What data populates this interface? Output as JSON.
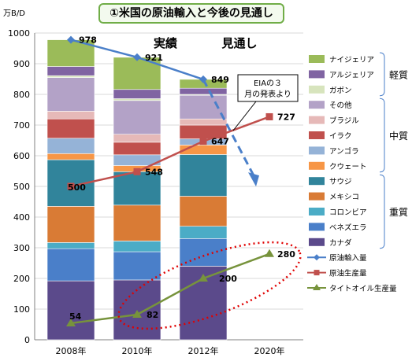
{
  "title": "①米国の原油輸入と今後の見通し",
  "chart_data": {
    "type": "bar",
    "subtype": "stacked bar with line overlays",
    "title": "①米国の原油輸入と今後の見通し",
    "ylabel": "万B/D",
    "ylim": [
      0,
      1000
    ],
    "yticks": [
      0,
      100,
      200,
      300,
      400,
      500,
      600,
      700,
      800,
      900,
      1000
    ],
    "grid": true,
    "legend_position": "right",
    "categories": [
      "2008年",
      "2010年",
      "2012年",
      "2020年"
    ],
    "section_labels": {
      "actual": "実績",
      "forecast": "見通し"
    },
    "annotation": "EIAの３月の発表より",
    "stack_series": [
      {
        "name": "カナダ",
        "color": "#5b4a8b",
        "values": [
          192,
          195,
          240,
          null
        ]
      },
      {
        "name": "ベネズエラ",
        "color": "#4a7fc9",
        "values": [
          105,
          92,
          90,
          null
        ]
      },
      {
        "name": "コロンビア",
        "color": "#4bacc6",
        "values": [
          20,
          35,
          40,
          null
        ]
      },
      {
        "name": "メキシコ",
        "color": "#d97b35",
        "values": [
          118,
          117,
          98,
          null
        ]
      },
      {
        "name": "サウジ",
        "color": "#31849b",
        "values": [
          152,
          109,
          136,
          null
        ]
      },
      {
        "name": "クウェート",
        "color": "#f79646",
        "values": [
          20,
          20,
          31,
          null
        ]
      },
      {
        "name": "アンゴラ",
        "color": "#95b3d7",
        "values": [
          50,
          35,
          20,
          null
        ]
      },
      {
        "name": "イラク",
        "color": "#c0504d",
        "values": [
          63,
          41,
          45,
          null
        ]
      },
      {
        "name": "ブラジル",
        "color": "#e6b9b8",
        "values": [
          25,
          26,
          20,
          null
        ]
      },
      {
        "name": "その他",
        "color": "#b3a2c7",
        "values": [
          110,
          110,
          77,
          null
        ]
      },
      {
        "name": "ガボン",
        "color": "#d7e4bd",
        "values": [
          6,
          6,
          3,
          null
        ]
      },
      {
        "name": "アルジェリア",
        "color": "#8064a2",
        "values": [
          30,
          30,
          20,
          null
        ]
      },
      {
        "name": "ナイジェリア",
        "color": "#9bbb59",
        "values": [
          87,
          105,
          29,
          null
        ]
      }
    ],
    "line_series": [
      {
        "name": "原油輸入量",
        "color": "#4a7fc9",
        "marker": "diamond",
        "values": [
          978,
          921,
          849,
          510
        ],
        "labels": [
          "978",
          "921",
          "849",
          ""
        ]
      },
      {
        "name": "原油生産量",
        "color": "#c0504d",
        "marker": "square",
        "values": [
          500,
          548,
          647,
          727
        ],
        "labels": [
          "500",
          "548",
          "647",
          "727"
        ]
      },
      {
        "name": "タイトオイル生産量",
        "color": "#77933c",
        "marker": "triangle",
        "values": [
          54,
          82,
          200,
          280
        ],
        "labels": [
          "54",
          "82",
          "200",
          "280"
        ]
      }
    ],
    "legend_groups": [
      {
        "label": "軽質",
        "members": [
          "ナイジェリア",
          "アルジェリア",
          "ガボン"
        ]
      },
      {
        "label": "中質",
        "members": [
          "その他",
          "ブラジル",
          "イラク",
          "アンゴラ",
          "クウェート"
        ]
      },
      {
        "label": "重質",
        "members": [
          "サウジ",
          "メキシコ",
          "コロンビア",
          "ベネズエラ",
          "カナダ"
        ]
      }
    ]
  }
}
